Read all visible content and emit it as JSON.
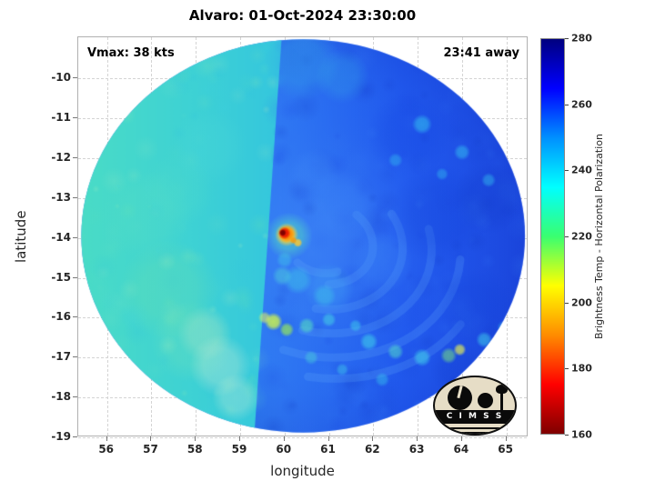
{
  "logo": {
    "text": "C I M S S"
  },
  "chart_data": {
    "type": "heatmap",
    "title": "Alvaro: 01-Oct-2024 23:30:00",
    "xlabel": "longitude",
    "ylabel": "latitude",
    "x_ticks": [
      56,
      57,
      58,
      59,
      60,
      61,
      62,
      63,
      64,
      65
    ],
    "y_ticks": [
      -10,
      -11,
      -12,
      -13,
      -14,
      -15,
      -16,
      -17,
      -18,
      -19
    ],
    "xlim": [
      55.35,
      65.5
    ],
    "ylim": [
      -19,
      -8.97
    ],
    "grid": true,
    "legend": "none",
    "annotations": [
      {
        "text": "Vmax: 38 kts",
        "position": "top-left"
      },
      {
        "text": "23:41 away",
        "position": "top-right"
      }
    ],
    "colorbar": {
      "label": "Brightness Temp - Horizontal Polarization",
      "ticks": [
        160,
        180,
        200,
        220,
        240,
        260,
        280
      ],
      "min": 160,
      "max": 280,
      "colormap": "jet-reversed",
      "colormap_stops": [
        {
          "t": 160,
          "color": "#7f0000"
        },
        {
          "t": 175,
          "color": "#ff0000"
        },
        {
          "t": 190,
          "color": "#ff8c00"
        },
        {
          "t": 205,
          "color": "#ffff00"
        },
        {
          "t": 220,
          "color": "#39ff70"
        },
        {
          "t": 235,
          "color": "#00ffff"
        },
        {
          "t": 250,
          "color": "#0090ff"
        },
        {
          "t": 265,
          "color": "#0000ff"
        },
        {
          "t": 280,
          "color": "#00007f"
        }
      ]
    },
    "swath": {
      "shape": "circular scan",
      "center_lon": 60.42,
      "center_lat": -13.95,
      "radius_lon_deg": 5.0,
      "radius_lat_deg": 4.93,
      "seam_top_lon": 59.95,
      "seam_bottom_lon": 59.3,
      "left_segment_mean_temp_K": 242,
      "right_segment_mean_temp_K": 258
    },
    "storm_center": {
      "lon": 60.0,
      "lat": -13.9,
      "min_temp_K": 163
    },
    "features_format": [
      "lon",
      "lat",
      "radius_px",
      "color",
      "alpha"
    ],
    "features": [
      [
        57.4,
        -15.3,
        55,
        "#7ce6a0",
        0.22
      ],
      [
        57.9,
        -16.6,
        45,
        "#8decaa",
        0.2
      ],
      [
        56.9,
        -13.4,
        50,
        "#5fe2c0",
        0.2
      ],
      [
        58.3,
        -11.7,
        42,
        "#4cd8d8",
        0.25
      ],
      [
        57.6,
        -12.8,
        40,
        "#55dec8",
        0.2
      ],
      [
        58.55,
        -17.2,
        34,
        "#cfeed8",
        0.35
      ],
      [
        58.9,
        -18.0,
        26,
        "#d6f0da",
        0.3
      ],
      [
        58.2,
        -16.4,
        30,
        "#bde8c8",
        0.3
      ],
      [
        60.4,
        -9.6,
        42,
        "#35a8e8",
        0.35
      ],
      [
        61.3,
        -9.95,
        30,
        "#35a8e8",
        0.3
      ],
      [
        61.3,
        -13.2,
        40,
        "#3f8bf8",
        0.3
      ],
      [
        62.2,
        -14.6,
        34,
        "#3f8bf8",
        0.28
      ],
      [
        61.0,
        -15.25,
        28,
        "#45aef5",
        0.3
      ],
      [
        60.65,
        -12.4,
        28,
        "#3f8bf8",
        0.28
      ],
      [
        63.5,
        -13.4,
        55,
        "#1240d8",
        0.28
      ],
      [
        64.3,
        -15.7,
        42,
        "#1240d8",
        0.25
      ],
      [
        62.8,
        -11.4,
        46,
        "#1545e0",
        0.28
      ],
      [
        64.6,
        -13.0,
        40,
        "#1038c8",
        0.25
      ],
      [
        63.9,
        -17.3,
        30,
        "#1038c8",
        0.2
      ],
      [
        63.1,
        -11.15,
        11,
        "#35c8f0",
        0.55
      ],
      [
        64.0,
        -11.85,
        9,
        "#35c8f0",
        0.5
      ],
      [
        64.6,
        -12.55,
        8,
        "#35c8f0",
        0.45
      ],
      [
        62.5,
        -12.05,
        8,
        "#35c8f0",
        0.4
      ],
      [
        63.55,
        -12.4,
        7,
        "#35c8f0",
        0.4
      ],
      [
        60.3,
        -15.05,
        16,
        "#40cfe8",
        0.45
      ],
      [
        60.9,
        -15.45,
        13,
        "#40cfe8",
        0.4
      ],
      [
        59.95,
        -14.95,
        11,
        "#50d8d8",
        0.45
      ],
      [
        60.0,
        -14.55,
        9,
        "#3fc8e8",
        0.45
      ],
      [
        59.75,
        -16.1,
        10,
        "#cdf34e",
        0.85
      ],
      [
        60.05,
        -16.3,
        8,
        "#9aec55",
        0.7
      ],
      [
        59.55,
        -16.0,
        7,
        "#e0f060",
        0.6
      ],
      [
        60.5,
        -16.2,
        9,
        "#55dfc0",
        0.6
      ],
      [
        61.0,
        -16.05,
        8,
        "#45d5e5",
        0.55
      ],
      [
        61.6,
        -16.2,
        7,
        "#3fd0ea",
        0.5
      ],
      [
        61.9,
        -16.6,
        10,
        "#3fd0ea",
        0.6
      ],
      [
        62.5,
        -16.85,
        9,
        "#55e0c8",
        0.55
      ],
      [
        63.1,
        -17.0,
        10,
        "#3fd0ea",
        0.6
      ],
      [
        63.7,
        -16.95,
        9,
        "#7de87a",
        0.55
      ],
      [
        63.95,
        -16.8,
        7,
        "#e8f050",
        0.7
      ],
      [
        64.5,
        -16.55,
        9,
        "#3fd0ea",
        0.55
      ],
      [
        64.95,
        -16.25,
        8,
        "#38c5ee",
        0.5
      ],
      [
        62.2,
        -17.55,
        8,
        "#38c8ee",
        0.45
      ],
      [
        61.3,
        -17.3,
        7,
        "#40cce8",
        0.45
      ],
      [
        60.6,
        -17.0,
        8,
        "#48d4d8",
        0.45
      ],
      [
        60.1,
        -13.95,
        26,
        "#55dfc0",
        0.5
      ],
      [
        60.05,
        -13.92,
        13,
        "#ffd83a",
        0.9
      ],
      [
        60.05,
        -13.9,
        10,
        "#ff8c00",
        0.95
      ],
      [
        60.0,
        -13.88,
        7,
        "#e81500",
        1
      ],
      [
        59.96,
        -13.87,
        4,
        "#7a0000",
        1
      ],
      [
        60.3,
        -14.12,
        5,
        "#ffc832",
        0.85
      ],
      [
        60.2,
        -14.06,
        4,
        "#ff9800",
        0.8
      ]
    ]
  }
}
